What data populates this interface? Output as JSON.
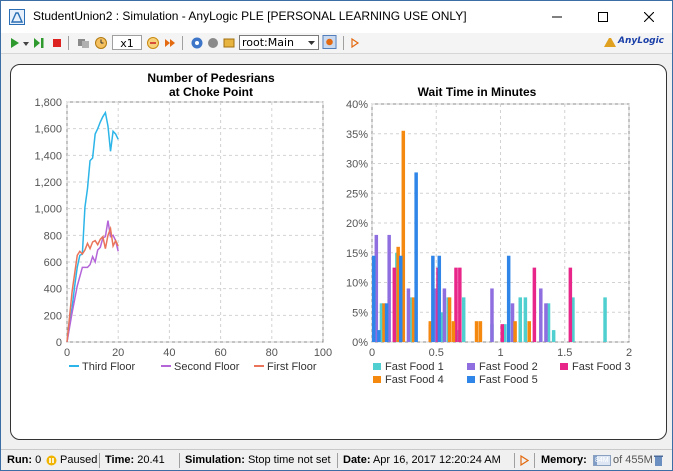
{
  "window": {
    "title": "StudentUnion2 : Simulation - AnyLogic PLE [PERSONAL LEARNING USE ONLY]"
  },
  "toolbar": {
    "speed": "x1",
    "view_selector": "root:Main",
    "brand": "AnyLogic"
  },
  "chart_data": [
    {
      "type": "line",
      "title": "Number of Pedesrians at Choke Point",
      "title_lines": [
        "Number of Pedesrians",
        "at Choke Point"
      ],
      "xlim": [
        0,
        100
      ],
      "ylim": [
        0,
        1800
      ],
      "x_ticks": [
        "0",
        "20",
        "40",
        "60",
        "80",
        "100"
      ],
      "y_ticks": [
        "0",
        "200",
        "400",
        "600",
        "800",
        "1,000",
        "1,200",
        "1,400",
        "1,600",
        "1,800"
      ],
      "legend_position": "bottom",
      "grid": true,
      "series": [
        {
          "name": "Third Floor",
          "color": "#2cb5e8",
          "x": [
            0,
            1,
            2,
            3,
            4,
            5,
            6,
            7,
            8,
            9,
            10,
            11,
            12,
            13,
            14,
            15,
            16,
            17,
            18,
            19,
            20
          ],
          "y": [
            0,
            130,
            260,
            420,
            560,
            650,
            660,
            1010,
            1150,
            1360,
            1380,
            1560,
            1600,
            1650,
            1690,
            1720,
            1620,
            1430,
            1580,
            1560,
            1520
          ]
        },
        {
          "name": "Second Floor",
          "color": "#b465d8",
          "x": [
            0,
            2,
            4,
            6,
            8,
            9,
            10,
            11,
            12,
            13,
            14,
            15,
            16,
            17,
            18,
            19,
            20
          ],
          "y": [
            0,
            220,
            420,
            560,
            560,
            580,
            640,
            600,
            690,
            710,
            780,
            790,
            910,
            790,
            800,
            760,
            680
          ]
        },
        {
          "name": "First Floor",
          "color": "#e9745a",
          "x": [
            0,
            2,
            4,
            5,
            6,
            7,
            8,
            9,
            10,
            11,
            12,
            13,
            14,
            15,
            16,
            17,
            18,
            19,
            20
          ],
          "y": [
            0,
            380,
            650,
            680,
            660,
            690,
            740,
            700,
            750,
            760,
            730,
            770,
            790,
            700,
            800,
            850,
            720,
            760,
            720
          ]
        }
      ]
    },
    {
      "type": "bar",
      "title": "Wait Time in Minutes",
      "xlim": [
        0,
        2
      ],
      "ylim": [
        0,
        40
      ],
      "x_ticks": [
        "0",
        "0.5",
        "1",
        "1.5",
        "2"
      ],
      "y_ticks": [
        "0%",
        "5%",
        "10%",
        "15%",
        "20%",
        "25%",
        "30%",
        "35%",
        "40%"
      ],
      "legend_position": "bottom",
      "grid": true,
      "series": [
        {
          "name": "Fast Food 1",
          "color": "#4fcfcf",
          "x": [
            0.06,
            0.18,
            0.23,
            0.29,
            0.49,
            0.53,
            0.58,
            0.66,
            0.7,
            0.92,
            1.02,
            1.14,
            1.18,
            1.36,
            1.4,
            1.55,
            1.8
          ],
          "y": [
            6.5,
            15.0,
            2.0,
            7.5,
            3.0,
            5.0,
            7.5,
            2.0,
            7.5,
            3.0,
            3.0,
            7.5,
            7.5,
            6.5,
            2.0,
            7.5,
            7.5
          ]
        },
        {
          "name": "Fast Food 2",
          "color": "#8f6fe0",
          "x": [
            0.02,
            0.12,
            0.27,
            0.48,
            0.55,
            0.92,
            1.08,
            1.3,
            1.34
          ],
          "y": [
            18.0,
            18.0,
            9.0,
            9.0,
            9.0,
            9.0,
            6.5,
            9.0,
            6.5
          ]
        },
        {
          "name": "Fast Food 3",
          "color": "#e8268a",
          "x": [
            0.16,
            0.44,
            0.5,
            0.64,
            0.67,
            1.0,
            1.25,
            1.53
          ],
          "y": [
            12.5,
            3.0,
            12.5,
            12.5,
            12.5,
            3.0,
            12.5,
            12.5
          ]
        },
        {
          "name": "Fast Food 4",
          "color": "#f5890f",
          "x": [
            0.08,
            0.19,
            0.23,
            0.31,
            0.44,
            0.59,
            0.62,
            0.8,
            0.83,
            1.1,
            1.21
          ],
          "y": [
            6.5,
            16.0,
            35.5,
            7.5,
            3.5,
            7.5,
            3.5,
            3.5,
            3.5,
            3.5,
            3.5
          ]
        },
        {
          "name": "Fast Food 5",
          "color": "#2f86e8",
          "x": [
            0.0,
            0.04,
            0.1,
            0.21,
            0.33,
            0.46,
            0.51,
            1.05
          ],
          "y": [
            14.5,
            2.0,
            6.5,
            14.5,
            28.5,
            14.5,
            14.5,
            14.5
          ]
        }
      ]
    }
  ],
  "status": {
    "run_label": "Run:",
    "run_value": "0",
    "run_state": "Paused",
    "time_label": "Time:",
    "time_value": "20.41",
    "simulation_label": "Simulation:",
    "simulation_value": "Stop time not set",
    "date_label": "Date:",
    "date_value": "Apr 16, 2017 12:20:24 AM",
    "memory_label": "Memory:",
    "memory_value": "of 455M",
    "memory_used_value": "84M",
    "memory_used_fraction": 0.18
  },
  "colors": {
    "accent": "#3b6ea5",
    "paused_indicator": "#f0b400"
  }
}
